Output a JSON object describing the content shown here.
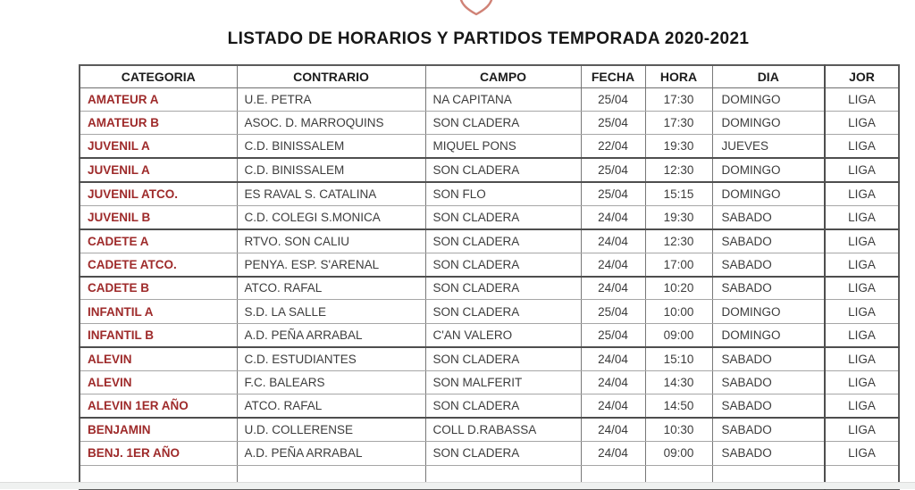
{
  "page": {
    "title": "LISTADO DE HORARIOS Y PARTIDOS TEMPORADA 2020-2021"
  },
  "colors": {
    "category_red": "#9e2a2a",
    "body_text": "#3c3c3c",
    "crest_outline": "#d08276",
    "crest_mark": "#b8453a"
  },
  "icons": {
    "crest": "club-crest-icon"
  },
  "table": {
    "columns": [
      "CATEGORIA",
      "CONTRARIO",
      "CAMPO",
      "FECHA",
      "HORA",
      "DIA",
      "JOR"
    ],
    "rows": [
      {
        "categoria": "AMATEUR A",
        "contrario": "U.E. PETRA",
        "campo": "NA CAPITANA",
        "fecha": "25/04",
        "hora": "17:30",
        "dia": "DOMINGO",
        "jor": "LIGA"
      },
      {
        "categoria": "AMATEUR B",
        "contrario": "ASOC. D. MARROQUINS",
        "campo": "SON CLADERA",
        "fecha": "25/04",
        "hora": "17:30",
        "dia": "DOMINGO",
        "jor": "LIGA"
      },
      {
        "categoria": "JUVENIL A",
        "contrario": "C.D. BINISSALEM",
        "campo": "MIQUEL PONS",
        "fecha": "22/04",
        "hora": "19:30",
        "dia": "JUEVES",
        "jor": "LIGA"
      },
      {
        "categoria": "JUVENIL A",
        "contrario": "C.D. BINISSALEM",
        "campo": "SON CLADERA",
        "fecha": "25/04",
        "hora": "12:30",
        "dia": "DOMINGO",
        "jor": "LIGA"
      },
      {
        "categoria": "JUVENIL ATCO.",
        "contrario": "ES RAVAL S. CATALINA",
        "campo": "SON FLO",
        "fecha": "25/04",
        "hora": "15:15",
        "dia": "DOMINGO",
        "jor": "LIGA"
      },
      {
        "categoria": "JUVENIL B",
        "contrario": "C.D. COLEGI S.MONICA",
        "campo": "SON CLADERA",
        "fecha": "24/04",
        "hora": "19:30",
        "dia": "SABADO",
        "jor": "LIGA"
      },
      {
        "categoria": "CADETE A",
        "contrario": "RTVO. SON CALIU",
        "campo": "SON CLADERA",
        "fecha": "24/04",
        "hora": "12:30",
        "dia": "SABADO",
        "jor": "LIGA"
      },
      {
        "categoria": "CADETE ATCO.",
        "contrario": "PENYA. ESP. S'ARENAL",
        "campo": "SON CLADERA",
        "fecha": "24/04",
        "hora": "17:00",
        "dia": "SABADO",
        "jor": "LIGA"
      },
      {
        "categoria": "CADETE B",
        "contrario": "ATCO. RAFAL",
        "campo": "SON CLADERA",
        "fecha": "24/04",
        "hora": "10:20",
        "dia": "SABADO",
        "jor": "LIGA"
      },
      {
        "categoria": "INFANTIL A",
        "contrario": "S.D. LA SALLE",
        "campo": "SON CLADERA",
        "fecha": "25/04",
        "hora": "10:00",
        "dia": "DOMINGO",
        "jor": "LIGA"
      },
      {
        "categoria": "INFANTIL B",
        "contrario": "A.D. PEÑA ARRABAL",
        "campo": "C'AN VALERO",
        "fecha": "25/04",
        "hora": "09:00",
        "dia": "DOMINGO",
        "jor": "LIGA"
      },
      {
        "categoria": "ALEVIN",
        "contrario": "C.D. ESTUDIANTES",
        "campo": "SON CLADERA",
        "fecha": "24/04",
        "hora": "15:10",
        "dia": "SABADO",
        "jor": "LIGA"
      },
      {
        "categoria": "ALEVIN",
        "contrario": "F.C. BALEARS",
        "campo": "SON MALFERIT",
        "fecha": "24/04",
        "hora": "14:30",
        "dia": "SABADO",
        "jor": "LIGA"
      },
      {
        "categoria": "ALEVIN 1ER AÑO",
        "contrario": "ATCO. RAFAL",
        "campo": "SON CLADERA",
        "fecha": "24/04",
        "hora": "14:50",
        "dia": "SABADO",
        "jor": "LIGA"
      },
      {
        "categoria": "BENJAMIN",
        "contrario": "U.D. COLLERENSE",
        "campo": "COLL D.RABASSA",
        "fecha": "24/04",
        "hora": "10:30",
        "dia": "SABADO",
        "jor": "LIGA"
      },
      {
        "categoria": "BENJ. 1ER AÑO",
        "contrario": "A.D. PEÑA ARRABAL",
        "campo": "SON CLADERA",
        "fecha": "24/04",
        "hora": "09:00",
        "dia": "SABADO",
        "jor": "LIGA"
      }
    ]
  }
}
